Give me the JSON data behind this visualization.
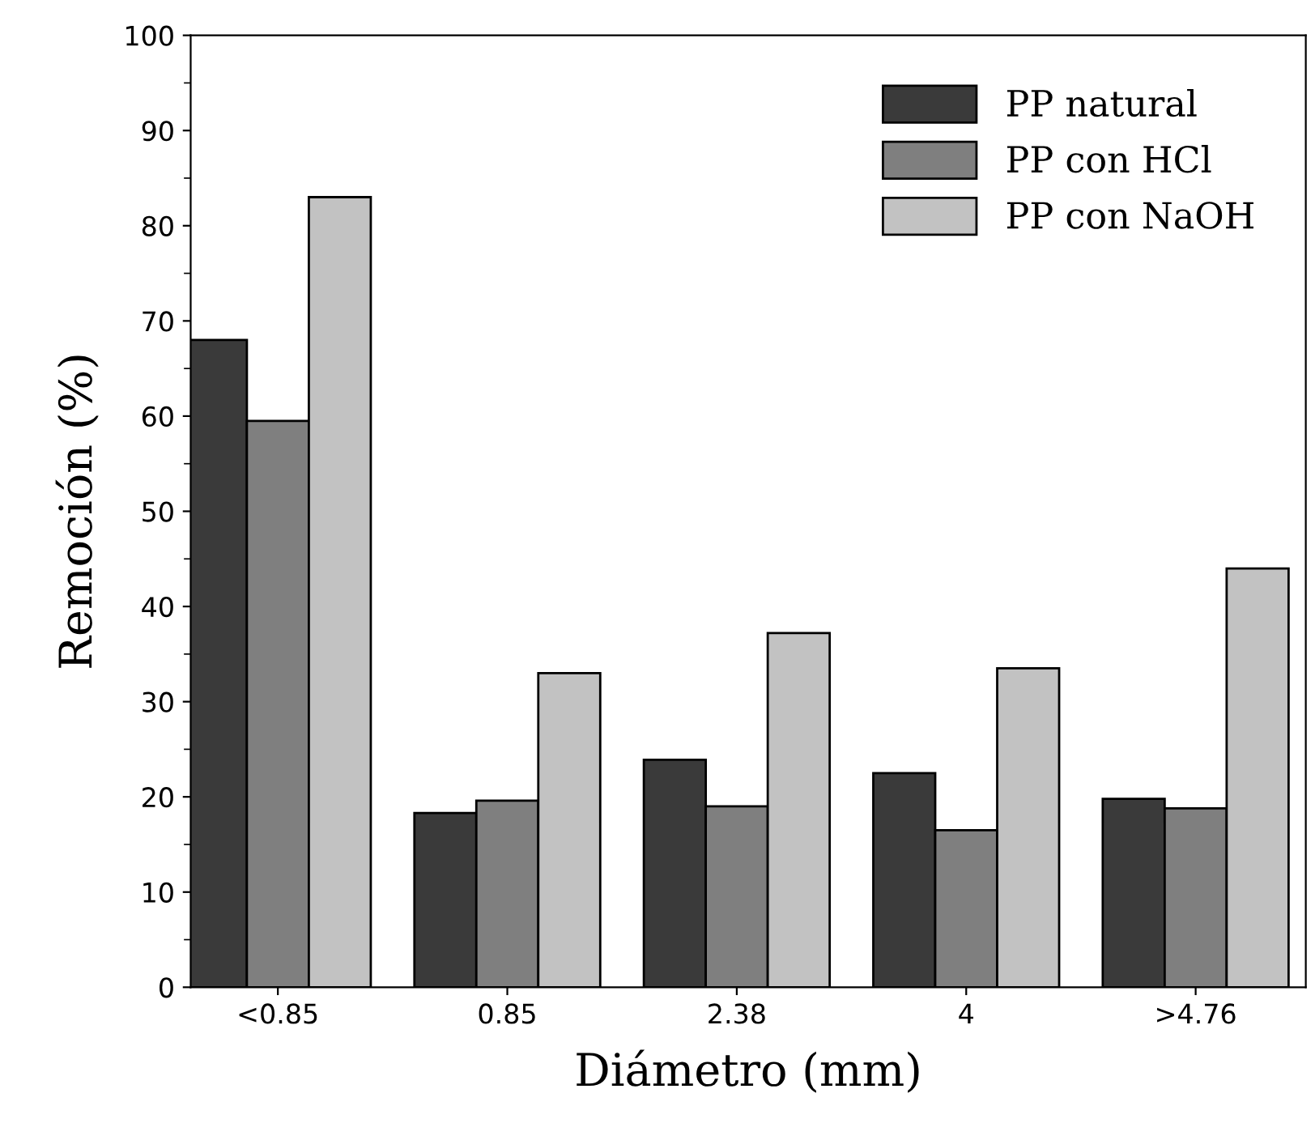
{
  "chart_data": {
    "type": "bar",
    "xlabel": "Diámetro (mm)",
    "ylabel": "Remoción (%)",
    "categories": [
      "<0.85",
      "0.85",
      "2.38",
      "4",
      ">4.76"
    ],
    "series": [
      {
        "name": "PP natural",
        "color": "#3a3a3a",
        "values": [
          68,
          18.3,
          23.9,
          22.5,
          19.8
        ]
      },
      {
        "name": "PP con HCl",
        "color": "#7f7f7f",
        "values": [
          59.5,
          19.6,
          19,
          16.5,
          18.8
        ]
      },
      {
        "name": "PP con NaOH",
        "color": "#c2c2c2",
        "values": [
          83,
          33,
          37.2,
          33.5,
          44
        ]
      }
    ],
    "ylim": [
      0,
      100
    ],
    "yticks": [
      0,
      10,
      20,
      30,
      40,
      50,
      60,
      70,
      80,
      90,
      100
    ],
    "grid": false,
    "legend": "top right"
  }
}
